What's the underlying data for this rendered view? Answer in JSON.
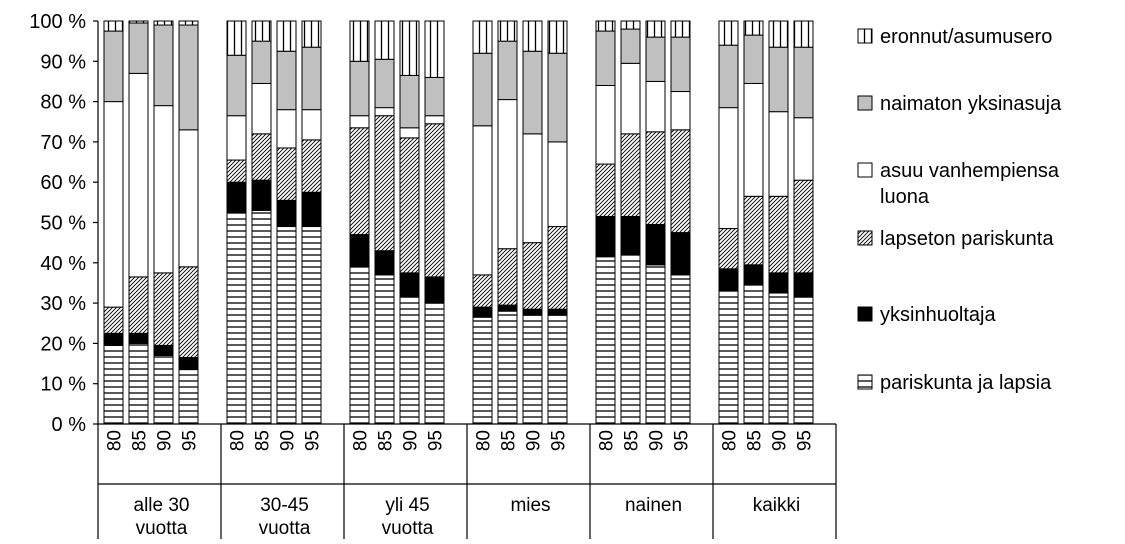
{
  "chart_data": {
    "type": "bar",
    "stacked": true,
    "percent_stacked": true,
    "title": "",
    "xlabel": "",
    "ylabel": "",
    "ylim": [
      0,
      100
    ],
    "y_tick_values": [
      0,
      10,
      20,
      30,
      40,
      50,
      60,
      70,
      80,
      90,
      100
    ],
    "y_tick_labels": [
      "0 %",
      "10 %",
      "20 %",
      "30 %",
      "40 %",
      "50 %",
      "60 %",
      "70 %",
      "80 %",
      "90 %",
      "100 %"
    ],
    "grid": false,
    "legend_position": "right",
    "groups": [
      {
        "label": "alle 30\nvuotta",
        "categories": [
          "80",
          "85",
          "90",
          "95"
        ]
      },
      {
        "label": "30-45\nvuotta",
        "categories": [
          "80",
          "85",
          "90",
          "95"
        ]
      },
      {
        "label": "yli 45\nvuotta",
        "categories": [
          "80",
          "85",
          "90",
          "95"
        ]
      },
      {
        "label": "mies",
        "categories": [
          "80",
          "85",
          "90",
          "95"
        ]
      },
      {
        "label": "nainen",
        "categories": [
          "80",
          "85",
          "90",
          "95"
        ]
      },
      {
        "label": "kaikki",
        "categories": [
          "80",
          "85",
          "90",
          "95"
        ]
      }
    ],
    "series": [
      {
        "name": "pariskunta ja lapsia",
        "pattern": "horizontal-lines",
        "values": [
          19.5,
          20,
          17,
          13.5,
          52.5,
          53,
          49,
          49,
          39,
          37,
          31.5,
          30,
          26.5,
          28,
          27,
          27,
          41.5,
          42,
          39.5,
          37,
          33,
          34.5,
          32.5,
          31.5
        ]
      },
      {
        "name": "yksinhuoltaja",
        "pattern": "solid-black",
        "values": [
          3,
          2.5,
          2.5,
          3,
          7.5,
          7.5,
          6.5,
          8.5,
          8,
          6,
          6,
          6.5,
          2.5,
          1.5,
          1.5,
          1.5,
          10,
          9.5,
          10,
          10.5,
          5.5,
          5,
          5,
          6
        ]
      },
      {
        "name": "lapseton pariskunta",
        "pattern": "diagonal-hatch",
        "values": [
          6.5,
          14,
          18,
          22.5,
          5.5,
          11.5,
          13,
          13,
          26.5,
          33.5,
          33.5,
          38,
          8,
          14,
          16.5,
          20.5,
          13,
          20.5,
          23,
          25.5,
          10,
          17,
          19,
          23
        ]
      },
      {
        "name": "asuu vanhempiensa\nluona",
        "pattern": "white",
        "values": [
          51,
          50.5,
          41.5,
          34,
          11,
          12.5,
          9.5,
          7.5,
          3,
          2,
          2.5,
          2,
          37,
          37,
          27,
          21,
          19.5,
          17.5,
          12.5,
          9.5,
          30,
          28,
          21,
          15.5
        ]
      },
      {
        "name": "naimaton yksinasuja",
        "pattern": "gray",
        "values": [
          17.5,
          12.5,
          20,
          26,
          15,
          10.5,
          14.5,
          15.5,
          13.5,
          12,
          13,
          9.5,
          18,
          14.5,
          20.5,
          22,
          13.5,
          8.5,
          11,
          13.5,
          15.5,
          12,
          16,
          17.5
        ]
      },
      {
        "name": "eronnut/asumusero",
        "pattern": "vertical-lines",
        "values": [
          2.5,
          0.5,
          1,
          1,
          8.5,
          5,
          7.5,
          6.5,
          10,
          9.5,
          13.5,
          14,
          8,
          5,
          7.5,
          8,
          2.5,
          2,
          4,
          4,
          6,
          3.5,
          6.5,
          6.5
        ]
      }
    ]
  }
}
